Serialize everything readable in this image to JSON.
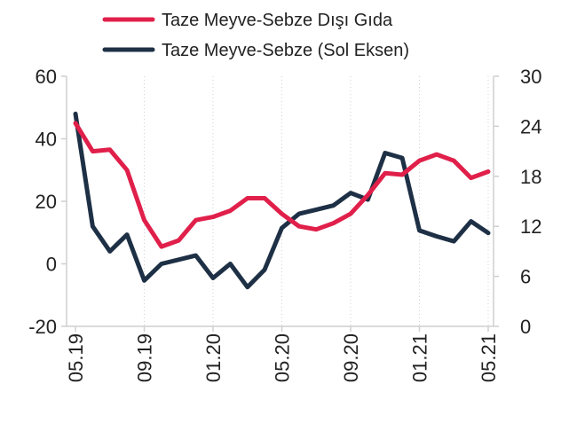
{
  "chart_data": {
    "type": "line",
    "x": [
      "05.19",
      "06.19",
      "07.19",
      "08.19",
      "09.19",
      "10.19",
      "11.19",
      "12.19",
      "01.20",
      "02.20",
      "03.20",
      "04.20",
      "05.20",
      "06.20",
      "07.20",
      "08.20",
      "09.20",
      "10.20",
      "11.20",
      "12.20",
      "01.21",
      "02.21",
      "03.21",
      "04.21",
      "05.21"
    ],
    "x_tick_labels": [
      "05.19",
      "09.19",
      "01.20",
      "05.20",
      "09.20",
      "01.21",
      "05.21"
    ],
    "left_axis": {
      "ticks": [
        60,
        40,
        20,
        0,
        -20
      ],
      "ylim": [
        -20,
        60
      ]
    },
    "right_axis": {
      "ticks": [
        30,
        24,
        18,
        12,
        6,
        0
      ],
      "ylim": [
        0,
        30
      ]
    },
    "legend_position": "top",
    "series": [
      {
        "name": "Taze Meyve-Sebze Dışı Gıda",
        "axis": "left",
        "color": "#e0204a",
        "values": [
          45,
          36,
          36.5,
          30,
          14,
          5.5,
          7.5,
          14,
          15,
          17,
          21,
          21,
          16,
          12,
          11,
          13,
          16,
          22,
          29,
          28.5,
          33,
          35,
          33,
          27.5,
          29.5
        ]
      },
      {
        "name": "Taze Meyve-Sebze (Sol Eksen)",
        "axis": "right",
        "color": "#1e3045",
        "values": [
          25.5,
          12,
          9,
          11,
          5.5,
          7.5,
          8,
          8.5,
          5.8,
          7.5,
          4.7,
          6.8,
          11.8,
          13.5,
          14,
          14.5,
          16,
          15.2,
          20.8,
          20.2,
          11.5,
          10.8,
          10.2,
          12.6,
          11.2
        ]
      }
    ]
  }
}
